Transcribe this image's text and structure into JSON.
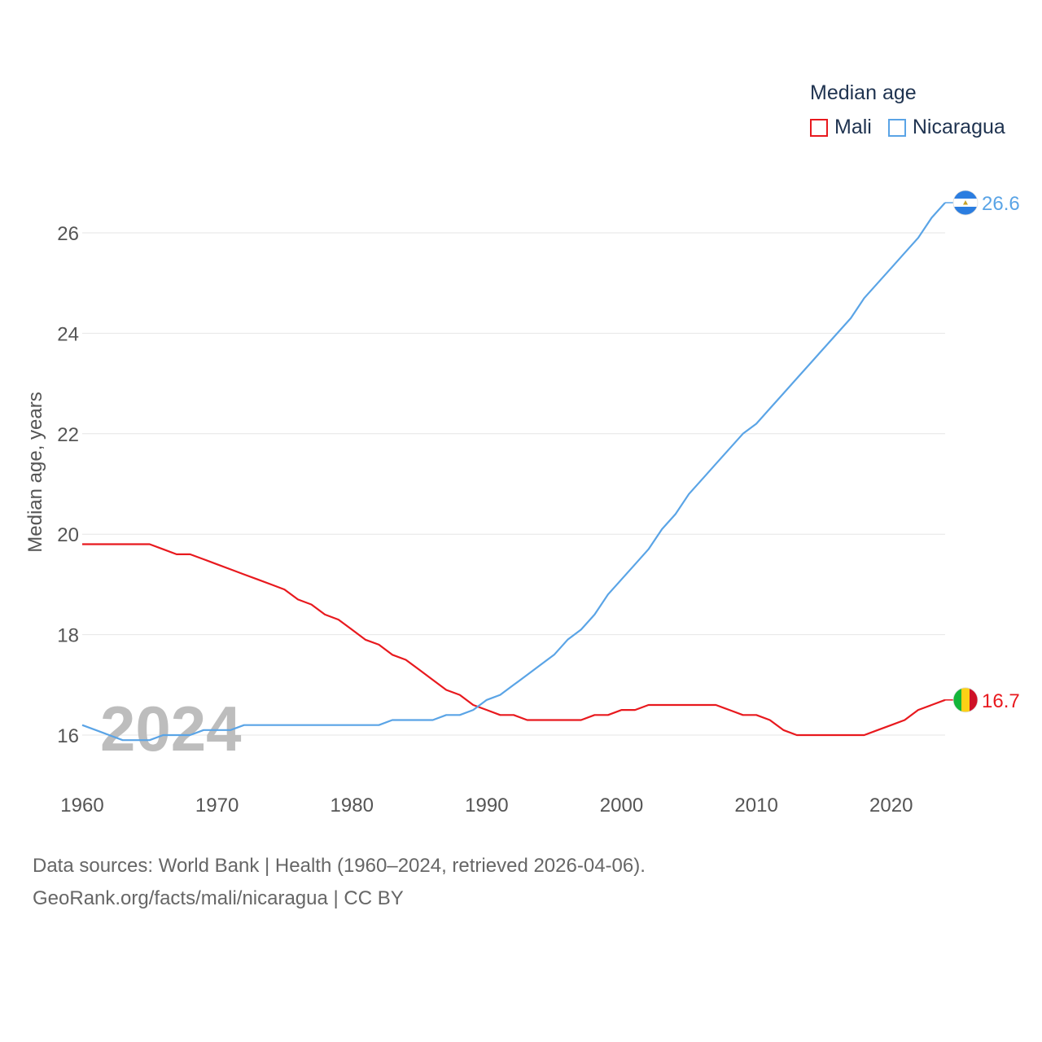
{
  "legend": {
    "title": "Median age"
  },
  "source": {
    "line1": "Data sources: World Bank | Health (1960–2024, retrieved 2026-04-06).",
    "line2": "GeoRank.org/facts/mali/nicaragua | CC BY"
  },
  "chart_data": {
    "type": "line",
    "title": "Median age",
    "xlabel": "",
    "ylabel": "Median age, years",
    "year_watermark": "2024",
    "xlim": [
      1960,
      2024
    ],
    "ylim": [
      15,
      27
    ],
    "xticks": [
      1960,
      1970,
      1980,
      1990,
      2000,
      2010,
      2020
    ],
    "yticks": [
      16,
      18,
      20,
      22,
      24,
      26
    ],
    "grid": true,
    "legend_position": "top-right",
    "x": [
      1960,
      1961,
      1962,
      1963,
      1964,
      1965,
      1966,
      1967,
      1968,
      1969,
      1970,
      1971,
      1972,
      1973,
      1974,
      1975,
      1976,
      1977,
      1978,
      1979,
      1980,
      1981,
      1982,
      1983,
      1984,
      1985,
      1986,
      1987,
      1988,
      1989,
      1990,
      1991,
      1992,
      1993,
      1994,
      1995,
      1996,
      1997,
      1998,
      1999,
      2000,
      2001,
      2002,
      2003,
      2004,
      2005,
      2006,
      2007,
      2008,
      2009,
      2010,
      2011,
      2012,
      2013,
      2014,
      2015,
      2016,
      2017,
      2018,
      2019,
      2020,
      2021,
      2022,
      2023,
      2024
    ],
    "series": [
      {
        "name": "Mali",
        "color": "#e8191e",
        "end_label": "16.7",
        "values": [
          19.8,
          19.8,
          19.8,
          19.8,
          19.8,
          19.8,
          19.7,
          19.6,
          19.6,
          19.5,
          19.4,
          19.3,
          19.2,
          19.1,
          19.0,
          18.9,
          18.7,
          18.6,
          18.4,
          18.3,
          18.1,
          17.9,
          17.8,
          17.6,
          17.5,
          17.3,
          17.1,
          16.9,
          16.8,
          16.6,
          16.5,
          16.4,
          16.4,
          16.3,
          16.3,
          16.3,
          16.3,
          16.3,
          16.4,
          16.4,
          16.5,
          16.5,
          16.6,
          16.6,
          16.6,
          16.6,
          16.6,
          16.6,
          16.5,
          16.4,
          16.4,
          16.3,
          16.1,
          16.0,
          16.0,
          16.0,
          16.0,
          16.0,
          16.0,
          16.1,
          16.2,
          16.3,
          16.5,
          16.6,
          16.7
        ]
      },
      {
        "name": "Nicaragua",
        "color": "#5aa4e6",
        "end_label": "26.6",
        "values": [
          16.2,
          16.1,
          16.0,
          15.9,
          15.9,
          15.9,
          16.0,
          16.0,
          16.0,
          16.1,
          16.1,
          16.1,
          16.2,
          16.2,
          16.2,
          16.2,
          16.2,
          16.2,
          16.2,
          16.2,
          16.2,
          16.2,
          16.2,
          16.3,
          16.3,
          16.3,
          16.3,
          16.4,
          16.4,
          16.5,
          16.7,
          16.8,
          17.0,
          17.2,
          17.4,
          17.6,
          17.9,
          18.1,
          18.4,
          18.8,
          19.1,
          19.4,
          19.7,
          20.1,
          20.4,
          20.8,
          21.1,
          21.4,
          21.7,
          22.0,
          22.2,
          22.5,
          22.8,
          23.1,
          23.4,
          23.7,
          24.0,
          24.3,
          24.7,
          25.0,
          25.3,
          25.6,
          25.9,
          26.3,
          26.6
        ]
      }
    ]
  }
}
